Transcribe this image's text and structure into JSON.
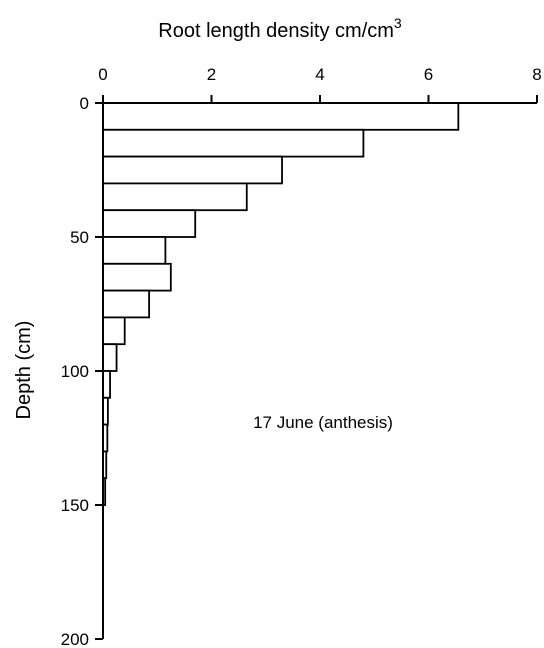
{
  "chart_data": {
    "type": "bar",
    "orientation": "horizontal",
    "title": "",
    "xlabel": "Root length density cm/cm",
    "xlabel_superscript": "3",
    "ylabel": "Depth (cm)",
    "xlim": [
      0,
      8
    ],
    "ylim": [
      0,
      200
    ],
    "y_inverted": true,
    "x_axis_position": "top",
    "x_ticks": [
      "0",
      "2",
      "4",
      "6",
      "8"
    ],
    "y_ticks": [
      "0",
      "50",
      "100",
      "150",
      "200"
    ],
    "bin_width": 10,
    "depth_bins": [
      [
        0,
        10
      ],
      [
        10,
        20
      ],
      [
        20,
        30
      ],
      [
        30,
        40
      ],
      [
        40,
        50
      ],
      [
        50,
        60
      ],
      [
        60,
        70
      ],
      [
        70,
        80
      ],
      [
        80,
        90
      ],
      [
        90,
        100
      ],
      [
        100,
        110
      ],
      [
        110,
        120
      ],
      [
        120,
        130
      ],
      [
        130,
        140
      ],
      [
        140,
        150
      ]
    ],
    "values": [
      6.55,
      4.8,
      3.3,
      2.65,
      1.7,
      1.15,
      1.25,
      0.85,
      0.4,
      0.25,
      0.13,
      0.09,
      0.08,
      0.06,
      0.04
    ],
    "annotation": "17 June (anthesis)",
    "grid": false,
    "legend": "none"
  }
}
